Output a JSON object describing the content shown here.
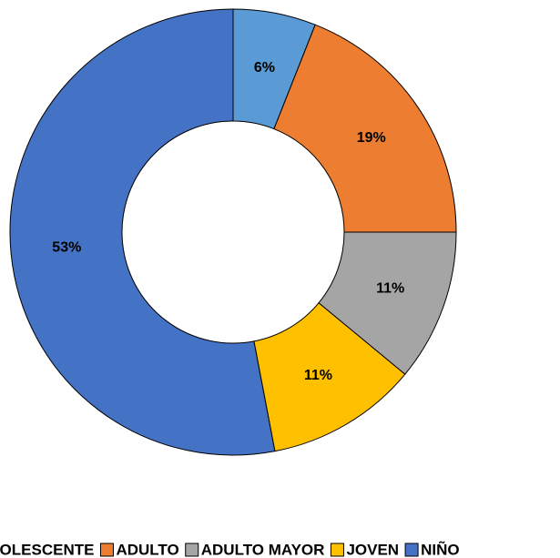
{
  "chart_data": {
    "type": "donut",
    "categories": [
      "ADOLESCENTE",
      "ADULTO",
      "ADULTO MAYOR",
      "JOVEN",
      "NIÑO"
    ],
    "values": [
      6,
      19,
      11,
      11,
      53
    ],
    "value_labels": [
      "6%",
      "19%",
      "11%",
      "11%",
      "53%"
    ],
    "colors": [
      "#5b9bd5",
      "#ed7d31",
      "#a5a5a5",
      "#ffc000",
      "#4472c4"
    ],
    "legend": "bottom"
  }
}
